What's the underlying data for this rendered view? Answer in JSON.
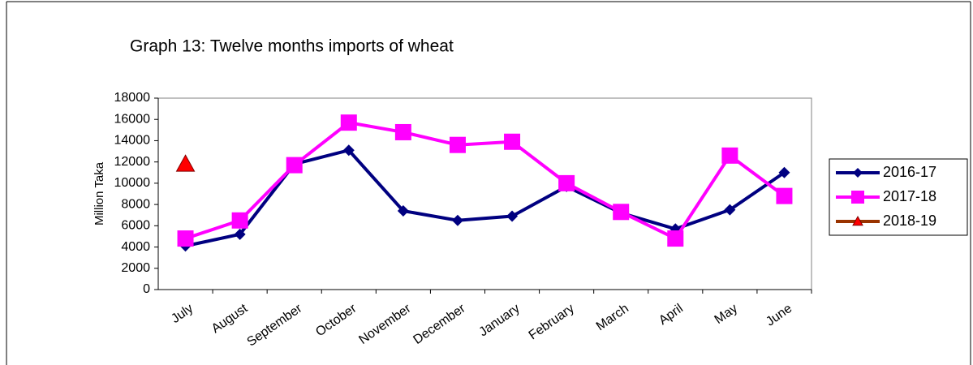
{
  "chart_data": {
    "type": "line",
    "title": "Graph 13: Twelve months imports of wheat",
    "y_label": "Million Taka",
    "categories": [
      "July",
      "August",
      "September",
      "October",
      "November",
      "December",
      "January",
      "February",
      "March",
      "April",
      "May",
      "June"
    ],
    "series": [
      {
        "name": "2016-17",
        "color": "#000080",
        "marker": "diamond",
        "values": [
          4100,
          5200,
          11800,
          13100,
          7400,
          6500,
          6900,
          9700,
          7200,
          5700,
          7500,
          11000
        ]
      },
      {
        "name": "2017-18",
        "color": "#ff00ff",
        "marker": "square",
        "values": [
          4800,
          6500,
          11700,
          15700,
          14800,
          13600,
          13900,
          10000,
          7300,
          4800,
          12600,
          8800
        ]
      },
      {
        "name": "2018-19",
        "color": "#993300",
        "marker_color": "#ff0000",
        "marker": "triangle",
        "values": [
          11800,
          null,
          null,
          null,
          null,
          null,
          null,
          null,
          null,
          null,
          null,
          null
        ]
      }
    ],
    "ylim": [
      0,
      18000
    ],
    "yticks": [
      0,
      2000,
      4000,
      6000,
      8000,
      10000,
      12000,
      14000,
      16000,
      18000
    ],
    "legend": "right"
  }
}
